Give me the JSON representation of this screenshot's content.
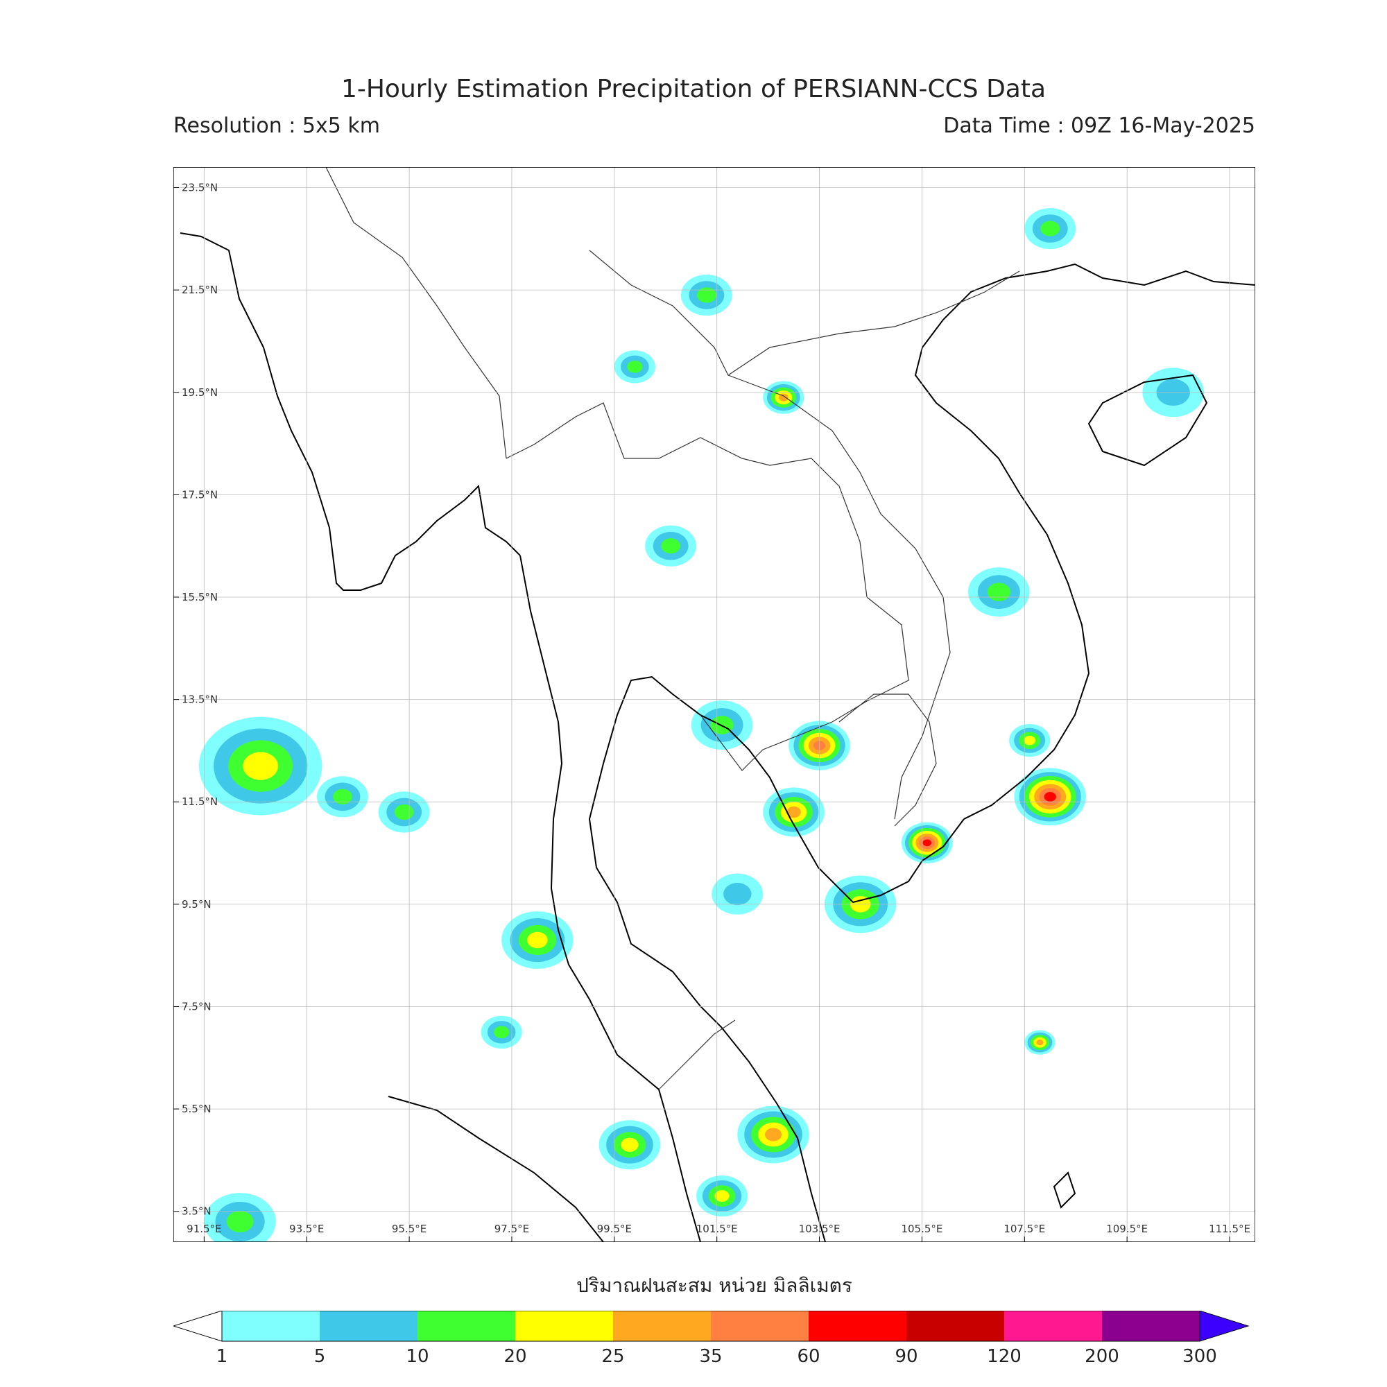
{
  "title": "1-Hourly Estimation Precipitation of PERSIANN-CCS Data",
  "resolution": "Resolution : 5x5 km",
  "data_time": "Data Time : 09Z 16-May-2025",
  "xlabel": "ปริมาณฝนสะสม หน่วย มิลลิเมตร",
  "map": {
    "lon_range": [
      90.9,
      112.0
    ],
    "lat_range": [
      2.9,
      23.9
    ],
    "lon_ticks": [
      "91.5°E",
      "93.5°E",
      "95.5°E",
      "97.5°E",
      "99.5°E",
      "101.5°E",
      "103.5°E",
      "105.5°E",
      "107.5°E",
      "109.5°E",
      "111.5°E"
    ],
    "lon_values": [
      91.5,
      93.5,
      95.5,
      97.5,
      99.5,
      101.5,
      103.5,
      105.5,
      107.5,
      109.5,
      111.5
    ],
    "lat_ticks": [
      "23.5°N",
      "21.5°N",
      "19.5°N",
      "17.5°N",
      "15.5°N",
      "13.5°N",
      "11.5°N",
      "9.5°N",
      "7.5°N",
      "5.5°N",
      "3.5°N"
    ],
    "lat_values": [
      23.5,
      21.5,
      19.5,
      17.5,
      15.5,
      13.5,
      11.5,
      9.5,
      7.5,
      5.5,
      3.5
    ],
    "grid": true
  },
  "colorbar": {
    "labels": [
      "1",
      "5",
      "10",
      "20",
      "25",
      "35",
      "60",
      "90",
      "120",
      "200",
      "300"
    ],
    "colors": [
      "#80ffff",
      "#40c8e8",
      "#40ff30",
      "#ffff00",
      "#ffa820",
      "#ff8040",
      "#ff0000",
      "#c80000",
      "#ff1890",
      "#8c0090",
      "#3c00ff"
    ],
    "under_color": "#ffffff"
  },
  "rain_cells": [
    {
      "lon": 92.6,
      "lat": 12.2,
      "r": 1.2,
      "level": 3
    },
    {
      "lon": 92.2,
      "lat": 3.3,
      "r": 0.7,
      "level": 2
    },
    {
      "lon": 94.2,
      "lat": 11.6,
      "r": 0.5,
      "level": 2
    },
    {
      "lon": 98.0,
      "lat": 8.8,
      "r": 0.7,
      "level": 3
    },
    {
      "lon": 99.8,
      "lat": 4.8,
      "r": 0.6,
      "level": 3
    },
    {
      "lon": 102.6,
      "lat": 5.0,
      "r": 0.7,
      "level": 4
    },
    {
      "lon": 101.6,
      "lat": 3.8,
      "r": 0.5,
      "level": 3
    },
    {
      "lon": 103.5,
      "lat": 12.6,
      "r": 0.6,
      "level": 5
    },
    {
      "lon": 103.0,
      "lat": 11.3,
      "r": 0.6,
      "level": 4
    },
    {
      "lon": 104.3,
      "lat": 9.5,
      "r": 0.7,
      "level": 3
    },
    {
      "lon": 105.6,
      "lat": 10.7,
      "r": 0.5,
      "level": 6
    },
    {
      "lon": 108.0,
      "lat": 11.6,
      "r": 0.7,
      "level": 6
    },
    {
      "lon": 107.0,
      "lat": 15.6,
      "r": 0.6,
      "level": 2
    },
    {
      "lon": 108.0,
      "lat": 22.7,
      "r": 0.5,
      "level": 2
    },
    {
      "lon": 110.4,
      "lat": 19.5,
      "r": 0.6,
      "level": 1
    },
    {
      "lon": 101.3,
      "lat": 21.4,
      "r": 0.5,
      "level": 2
    },
    {
      "lon": 100.6,
      "lat": 16.5,
      "r": 0.5,
      "level": 2
    },
    {
      "lon": 101.6,
      "lat": 13.0,
      "r": 0.6,
      "level": 2
    },
    {
      "lon": 102.8,
      "lat": 19.4,
      "r": 0.4,
      "level": 4
    },
    {
      "lon": 97.3,
      "lat": 7.0,
      "r": 0.4,
      "level": 2
    },
    {
      "lon": 101.9,
      "lat": 9.7,
      "r": 0.5,
      "level": 1
    },
    {
      "lon": 95.4,
      "lat": 11.3,
      "r": 0.5,
      "level": 2
    },
    {
      "lon": 99.9,
      "lat": 20.0,
      "r": 0.4,
      "level": 2
    },
    {
      "lon": 107.6,
      "lat": 12.7,
      "r": 0.4,
      "level": 3
    },
    {
      "lon": 107.8,
      "lat": 6.8,
      "r": 0.3,
      "level": 4
    }
  ]
}
